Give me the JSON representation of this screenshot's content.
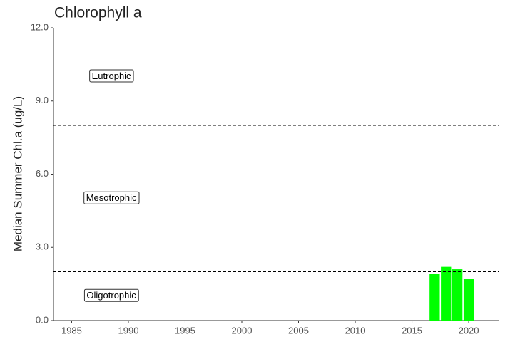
{
  "chart_data": {
    "type": "bar",
    "title": "Chlorophyll a",
    "y_label": "Median Summer Chl.a (ug/L)",
    "x": [
      2017,
      2018,
      2019,
      2020
    ],
    "values": [
      1.9,
      2.2,
      2.1,
      1.72
    ],
    "color": "#00ff00",
    "xlim": [
      1983.4,
      2022.7
    ],
    "xticks": [
      1985,
      1990,
      1995,
      2000,
      2005,
      2010,
      2015,
      2020
    ],
    "ylim": [
      0,
      12
    ],
    "yticks": [
      {
        "value": 0,
        "label": "0.0"
      },
      {
        "value": 3,
        "label": "3.0"
      },
      {
        "value": 6,
        "label": "6.0"
      },
      {
        "value": 9,
        "label": "9.0"
      },
      {
        "value": 12,
        "label": "12.0"
      }
    ],
    "hlines": [
      2,
      8
    ],
    "annotations": [
      {
        "text": "Eutrophic",
        "x": 1988.5,
        "y": 10
      },
      {
        "text": "Mesotrophic",
        "x": 1988.5,
        "y": 5
      },
      {
        "text": "Oligotrophic",
        "x": 1988.5,
        "y": 1
      }
    ]
  }
}
